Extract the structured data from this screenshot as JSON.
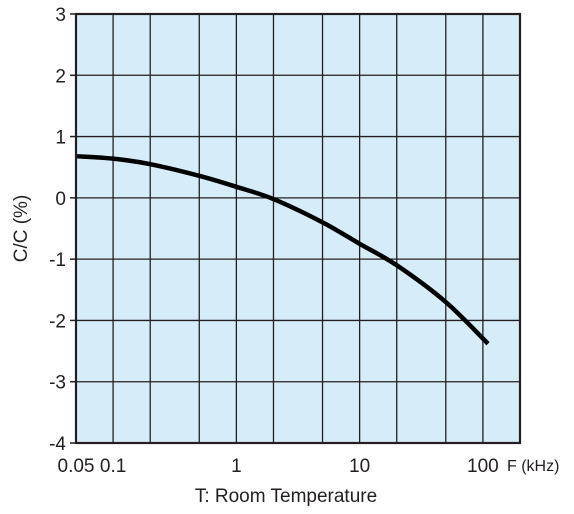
{
  "chart_data": {
    "type": "line",
    "xlabel": "F (kHz)",
    "ylabel": "C/C (%)",
    "note": "T: Room Temperature",
    "xscale": "log",
    "xlim": [
      0.05,
      200
    ],
    "ylim": [
      -4,
      3
    ],
    "grid": true,
    "x_ticks": [
      {
        "value": 0.05,
        "label": "0.05"
      },
      {
        "value": 0.1,
        "label": "0.1"
      },
      {
        "value": 1,
        "label": "1"
      },
      {
        "value": 10,
        "label": "10"
      },
      {
        "value": 100,
        "label": "100"
      }
    ],
    "x_gridlines": [
      0.1,
      0.2,
      0.5,
      1,
      2,
      5,
      10,
      20,
      50,
      100
    ],
    "y_ticks": [
      3,
      2,
      1,
      0,
      -1,
      -2,
      -3,
      -4
    ],
    "series": [
      {
        "x": [
          0.05,
          0.1,
          0.2,
          0.5,
          1,
          2,
          5,
          10,
          20,
          50,
          110
        ],
        "y": [
          0.68,
          0.64,
          0.55,
          0.36,
          0.18,
          -0.02,
          -0.4,
          -0.75,
          -1.1,
          -1.7,
          -2.38
        ]
      }
    ],
    "colors": {
      "plot_bg": "#d6ecf8",
      "grid": "#231f20",
      "curve": "#000000",
      "text": "#231f20"
    }
  }
}
